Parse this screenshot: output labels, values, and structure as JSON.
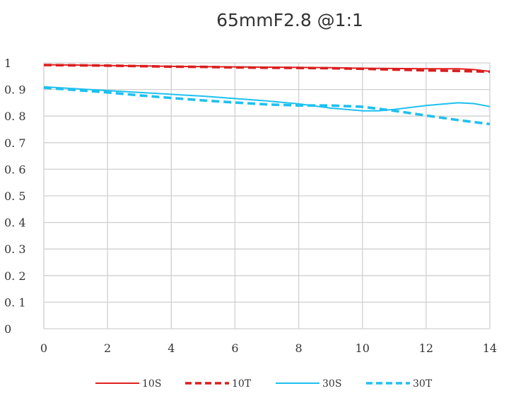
{
  "chart_data": {
    "type": "line",
    "title": "65mmF2.8 @1:1",
    "xlim": [
      0,
      14
    ],
    "ylim": [
      0,
      1
    ],
    "xticks": [
      "0",
      "2",
      "4",
      "6",
      "8",
      "10",
      "12",
      "14"
    ],
    "yticks": [
      "0",
      "0. 1",
      "0. 2",
      "0. 3",
      "0. 4",
      "0. 5",
      "0. 6",
      "0. 7",
      "0. 8",
      "0. 9",
      "1"
    ],
    "grid": true,
    "legend_position": "bottom",
    "series": [
      {
        "name": "10S",
        "color": "#e02020",
        "style": "solid",
        "width": "thin",
        "x": [
          0,
          1,
          2,
          3,
          4,
          5,
          6,
          7,
          8,
          9,
          10,
          11,
          12,
          13,
          13.5,
          14
        ],
        "y": [
          0.993,
          0.992,
          0.99,
          0.989,
          0.987,
          0.986,
          0.985,
          0.984,
          0.983,
          0.982,
          0.98,
          0.979,
          0.978,
          0.978,
          0.975,
          0.968
        ]
      },
      {
        "name": "10T",
        "color": "#d91e1e",
        "style": "dashed",
        "width": "thick",
        "x": [
          0,
          1,
          2,
          3,
          4,
          5,
          6,
          7,
          8,
          9,
          10,
          11,
          12,
          13,
          14
        ],
        "y": [
          0.992,
          0.991,
          0.99,
          0.988,
          0.986,
          0.985,
          0.983,
          0.982,
          0.981,
          0.98,
          0.978,
          0.975,
          0.972,
          0.97,
          0.967
        ]
      },
      {
        "name": "30S",
        "color": "#1ec0f0",
        "style": "solid",
        "width": "thin",
        "x": [
          0,
          1,
          2,
          3,
          4,
          5,
          6,
          7,
          8,
          9,
          10,
          10.5,
          11,
          12,
          13,
          13.5,
          14
        ],
        "y": [
          0.91,
          0.903,
          0.896,
          0.889,
          0.882,
          0.875,
          0.866,
          0.857,
          0.846,
          0.83,
          0.82,
          0.82,
          0.825,
          0.84,
          0.85,
          0.847,
          0.836
        ]
      },
      {
        "name": "30T",
        "color": "#1ec0f0",
        "style": "dashed",
        "width": "thick",
        "x": [
          0,
          1,
          2,
          3,
          4,
          5,
          6,
          7,
          8,
          9,
          10,
          11,
          12,
          13,
          14
        ],
        "y": [
          0.907,
          0.898,
          0.889,
          0.878,
          0.868,
          0.859,
          0.851,
          0.844,
          0.84,
          0.84,
          0.835,
          0.82,
          0.802,
          0.785,
          0.77
        ]
      }
    ]
  }
}
